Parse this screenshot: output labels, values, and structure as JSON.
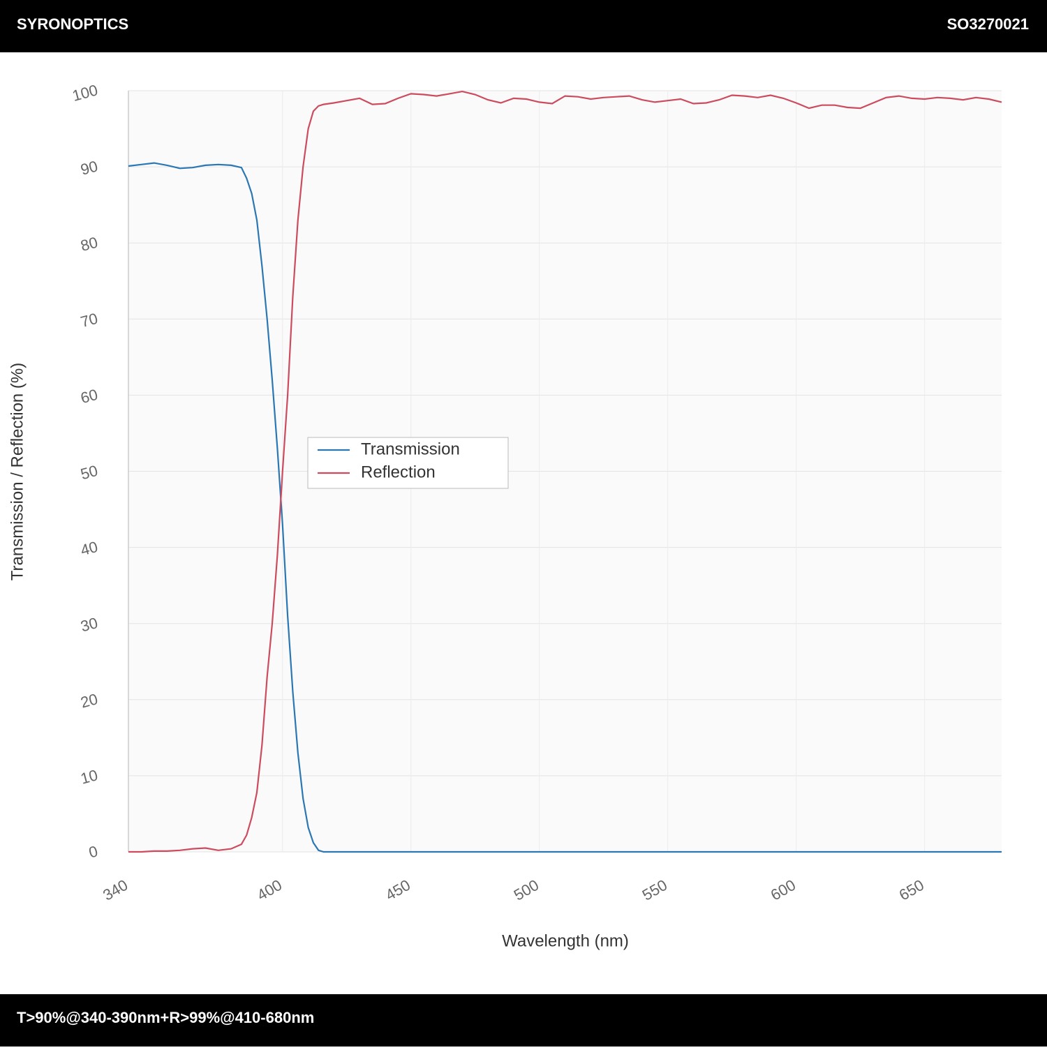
{
  "header": {
    "brand": "SYRONOPTICS",
    "code": "SO3270021"
  },
  "footer": {
    "spec": "T>90%@340-390nm+R>99%@410-680nm"
  },
  "chart_data": {
    "type": "line",
    "xlabel": "Wavelength (nm)",
    "ylabel": "Transmission / Reflection (%)",
    "x": [
      340,
      345,
      350,
      355,
      360,
      365,
      370,
      375,
      380,
      384,
      386,
      388,
      390,
      392,
      394,
      396,
      398,
      400,
      402,
      404,
      406,
      408,
      410,
      412,
      414,
      416,
      420,
      425,
      430,
      435,
      440,
      445,
      450,
      455,
      460,
      465,
      470,
      475,
      480,
      485,
      490,
      495,
      500,
      505,
      510,
      515,
      520,
      525,
      530,
      535,
      540,
      545,
      550,
      555,
      560,
      565,
      570,
      575,
      580,
      585,
      590,
      595,
      600,
      605,
      610,
      615,
      620,
      625,
      630,
      635,
      640,
      645,
      650,
      655,
      660,
      665,
      670,
      675,
      680
    ],
    "series": [
      {
        "name": "Transmission",
        "color": "#2b77b3",
        "values": [
          90.1,
          90.3,
          90.5,
          90.2,
          89.8,
          89.9,
          90.2,
          90.3,
          90.2,
          89.9,
          88.5,
          86.5,
          83,
          77,
          70,
          62,
          53,
          43,
          31,
          21,
          13,
          7,
          3.2,
          1.2,
          0.2,
          0,
          0,
          0,
          0,
          0,
          0,
          0,
          0,
          0,
          0,
          0,
          0,
          0,
          0,
          0,
          0,
          0,
          0,
          0,
          0,
          0,
          0,
          0,
          0,
          0,
          0,
          0,
          0,
          0,
          0,
          0,
          0,
          0,
          0,
          0,
          0,
          0,
          0,
          0,
          0,
          0,
          0,
          0,
          0,
          0,
          0,
          0,
          0,
          0,
          0,
          0,
          0,
          0,
          0
        ]
      },
      {
        "name": "Reflection",
        "color": "#cc4b5e",
        "values": [
          0,
          0,
          0.1,
          0.1,
          0.2,
          0.4,
          0.5,
          0.2,
          0.4,
          1.0,
          2.2,
          4.5,
          7.8,
          14,
          23,
          30,
          39,
          50,
          60,
          73,
          83,
          90,
          95,
          97.3,
          98,
          98.2,
          98.4,
          98.7,
          99.0,
          98.2,
          98.3,
          99.0,
          99.6,
          99.5,
          99.3,
          99.6,
          99.9,
          99.5,
          98.8,
          98.4,
          99.0,
          98.9,
          98.5,
          98.3,
          99.3,
          99.2,
          98.9,
          99.1,
          99.2,
          99.3,
          98.8,
          98.5,
          98.7,
          98.9,
          98.3,
          98.4,
          98.8,
          99.4,
          99.3,
          99.1,
          99.4,
          99.0,
          98.4,
          97.7,
          98.1,
          98.1,
          97.8,
          97.7,
          98.4,
          99.1,
          99.3,
          99.0,
          98.9,
          99.1,
          99.0,
          98.8,
          99.1,
          98.9,
          98.5
        ]
      }
    ],
    "xlim": [
      340,
      680
    ],
    "xticks": [
      340,
      400,
      450,
      500,
      550,
      600,
      650
    ],
    "ylim": [
      0,
      100
    ],
    "yticks": [
      0,
      10,
      20,
      30,
      40,
      50,
      60,
      70,
      80,
      90,
      100
    ],
    "grid": true,
    "legend": "center-left"
  }
}
